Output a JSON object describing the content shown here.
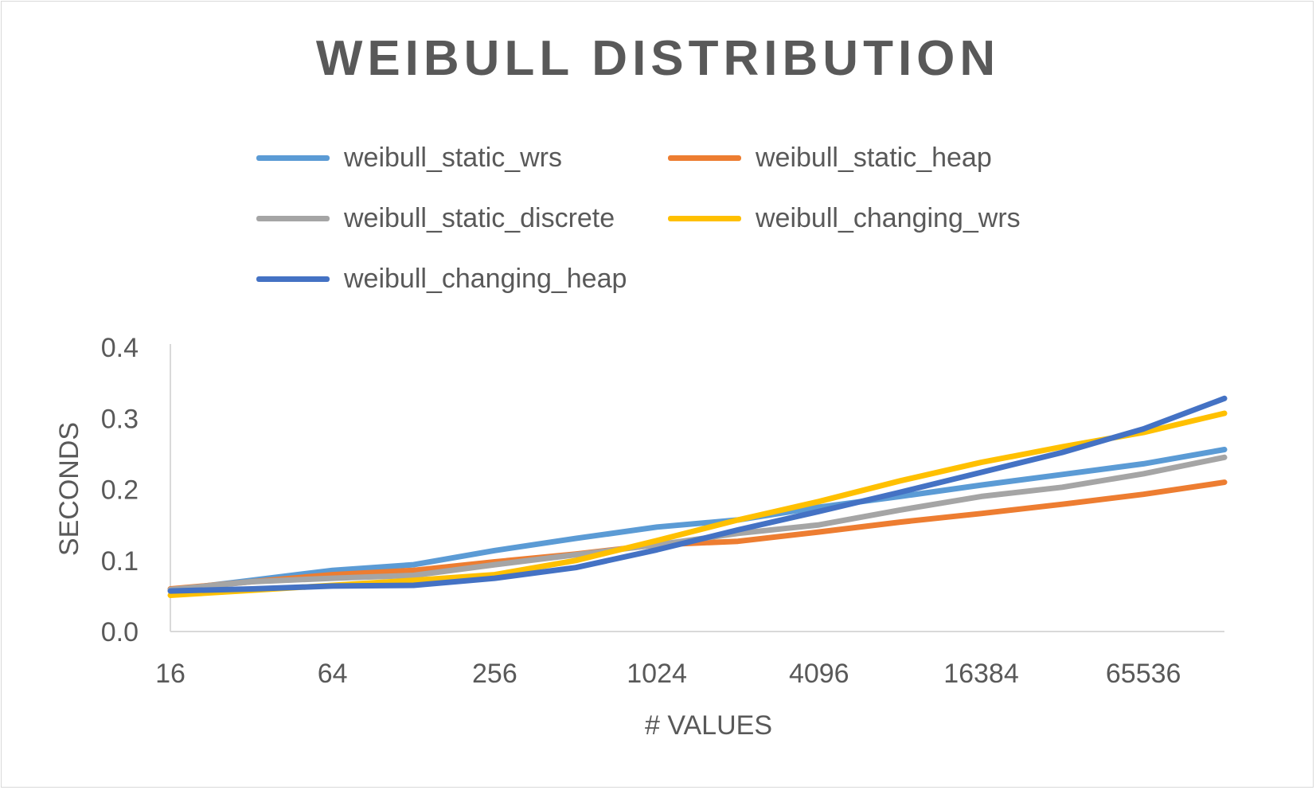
{
  "chart_data": {
    "type": "line",
    "title": "WEIBULL DISTRIBUTION",
    "xlabel": "# VALUES",
    "ylabel": "SECONDS",
    "ylim": [
      0,
      0.4
    ],
    "yticks": [
      "0.0",
      "0.1",
      "0.2",
      "0.3",
      "0.4"
    ],
    "x": [
      16,
      32,
      64,
      128,
      256,
      512,
      1024,
      2048,
      4096,
      8192,
      16384,
      32768,
      65536,
      131072
    ],
    "x_tick_labels": [
      "16",
      "64",
      "256",
      "1024",
      "4096",
      "16384",
      "65536"
    ],
    "grid": false,
    "legend_position": "top",
    "series": [
      {
        "name": "weibull_static_wrs",
        "color": "#5B9BD5",
        "values": [
          0.058,
          0.072,
          0.086,
          0.094,
          0.114,
          0.131,
          0.147,
          0.157,
          0.175,
          0.19,
          0.206,
          0.221,
          0.236,
          0.256
        ]
      },
      {
        "name": "weibull_static_heap",
        "color": "#ED7D31",
        "values": [
          0.06,
          0.07,
          0.08,
          0.086,
          0.098,
          0.109,
          0.122,
          0.127,
          0.14,
          0.154,
          0.166,
          0.179,
          0.193,
          0.21
        ]
      },
      {
        "name": "weibull_static_discrete",
        "color": "#A5A5A5",
        "values": [
          0.059,
          0.07,
          0.075,
          0.079,
          0.094,
          0.108,
          0.122,
          0.138,
          0.15,
          0.171,
          0.19,
          0.203,
          0.222,
          0.245
        ]
      },
      {
        "name": "weibull_changing_wrs",
        "color": "#FFC000",
        "values": [
          0.051,
          0.058,
          0.065,
          0.072,
          0.08,
          0.1,
          0.128,
          0.157,
          0.183,
          0.212,
          0.238,
          0.26,
          0.28,
          0.307
        ]
      },
      {
        "name": "weibull_changing_heap",
        "color": "#4472C4",
        "values": [
          0.057,
          0.06,
          0.064,
          0.065,
          0.075,
          0.09,
          0.115,
          0.143,
          0.169,
          0.196,
          0.224,
          0.252,
          0.285,
          0.328
        ]
      }
    ]
  }
}
